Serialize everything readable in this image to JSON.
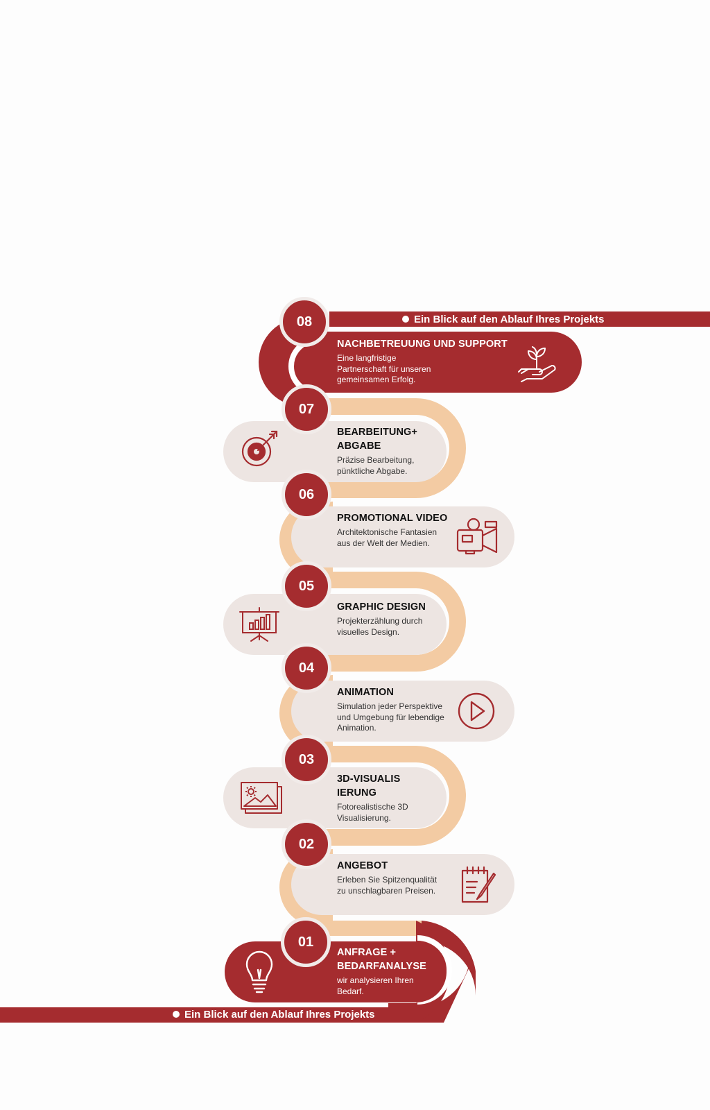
{
  "header_banner": {
    "text": "Ein Blick auf den Ablauf Ihres Projekts"
  },
  "footer_banner": {
    "text": "Ein Blick auf den Ablauf Ihres Projekts"
  },
  "colors": {
    "primary": "#a52c2f",
    "path": "#f3cba3",
    "card": "#ede5e2",
    "ring": "#f1ebe9"
  },
  "steps": [
    {
      "number": "01",
      "title": "ANFRAGE + BEDARFANALYSE",
      "description": "wir analysieren Ihren Bedarf.",
      "icon": "lightbulb-icon"
    },
    {
      "number": "02",
      "title": "ANGEBOT",
      "description": "Erleben Sie Spitzenqualität zu unschlagbaren Preisen.",
      "icon": "notepad-pencil-icon"
    },
    {
      "number": "03",
      "title": "3D-VISUALISIERUNG",
      "description": "Fotorealistische 3D Visualisierung.",
      "icon": "picture-icon"
    },
    {
      "number": "04",
      "title": "ANIMATION",
      "description": "Simulation jeder Perspektive und Umgebung für lebendige Animation.",
      "icon": "play-icon"
    },
    {
      "number": "05",
      "title": "GRAPHIC DESIGN",
      "description": "Projekterzählung durch visuelles Design.",
      "icon": "presentation-chart-icon"
    },
    {
      "number": "06",
      "title": "PROMOTIONAL VIDEO",
      "description": "Architektonische Fantasien aus der Welt der Medien.",
      "icon": "video-camera-icon"
    },
    {
      "number": "07",
      "title": "BEARBEITUNG+ ABGABE",
      "description": "Präzise Bearbeitung, pünktliche Abgabe.",
      "icon": "target-arrow-icon"
    },
    {
      "number": "08",
      "title": "NACHBETREUUNG UND SUPPORT",
      "description": "Eine langfristige Partnerschaft für unseren gemeinsamen Erfolg.",
      "icon": "plant-hand-icon"
    }
  ]
}
